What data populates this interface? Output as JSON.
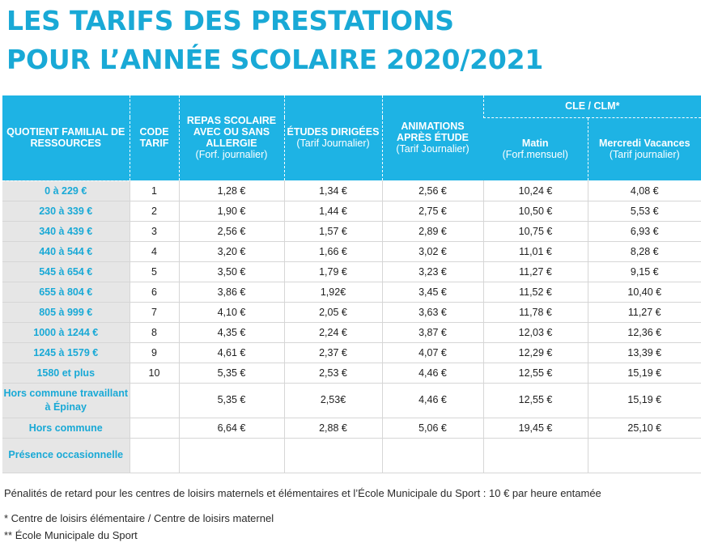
{
  "title": {
    "line1": "LES TARIFS DES PRESTATIONS",
    "line2": "POUR L’ANNÉE SCOLAIRE 2020/2021"
  },
  "headers": {
    "quotient": "QUOTIENT FAMILIAL DE RESSOURCES",
    "code_tarif": "CODE TARIF",
    "repas": "REPAS SCOLAIRE AVEC OU SANS ALLERGIE",
    "repas_sub": "(Forf. journalier)",
    "etudes": "ÉTUDES DIRIGÉES",
    "etudes_sub": "(Tarif Journalier)",
    "animations": "ANIMATIONS APRÈS ÉTUDE",
    "animations_sub": "(Tarif Journalier)",
    "cle_clm": "CLE / CLM*",
    "matin": "Matin",
    "matin_sub": "(Forf.mensuel)",
    "mercredi": "Mercredi Vacances",
    "mercredi_sub": "(Tarif journalier)"
  },
  "rows": [
    {
      "qf": "0 à 229 €",
      "code": "1",
      "repas": "1,28 €",
      "etudes": "1,34 €",
      "animations": "2,56 €",
      "matin": "10,24 €",
      "mercredi": "4,08 €"
    },
    {
      "qf": "230 à 339 €",
      "code": "2",
      "repas": "1,90 €",
      "etudes": "1,44 €",
      "animations": "2,75 €",
      "matin": "10,50 €",
      "mercredi": "5,53 €"
    },
    {
      "qf": "340 à 439 €",
      "code": "3",
      "repas": "2,56 €",
      "etudes": "1,57 €",
      "animations": "2,89 €",
      "matin": "10,75 €",
      "mercredi": "6,93 €"
    },
    {
      "qf": "440 à 544 €",
      "code": "4",
      "repas": "3,20 €",
      "etudes": "1,66 €",
      "animations": "3,02 €",
      "matin": "11,01 €",
      "mercredi": "8,28 €"
    },
    {
      "qf": "545 à 654 €",
      "code": "5",
      "repas": "3,50 €",
      "etudes": "1,79 €",
      "animations": "3,23 €",
      "matin": "11,27 €",
      "mercredi": "9,15 €"
    },
    {
      "qf": "655 à 804 €",
      "code": "6",
      "repas": "3,86 €",
      "etudes": "1,92€",
      "animations": "3,45 €",
      "matin": "11,52 €",
      "mercredi": "10,40 €"
    },
    {
      "qf": "805 à 999 €",
      "code": "7",
      "repas": "4,10 €",
      "etudes": "2,05 €",
      "animations": "3,63 €",
      "matin": "11,78 €",
      "mercredi": "11,27 €"
    },
    {
      "qf": "1000 à 1244 €",
      "code": "8",
      "repas": "4,35 €",
      "etudes": "2,24 €",
      "animations": "3,87 €",
      "matin": "12,03 €",
      "mercredi": "12,36 €"
    },
    {
      "qf": "1245 à 1579 €",
      "code": "9",
      "repas": "4,61 €",
      "etudes": "2,37 €",
      "animations": "4,07 €",
      "matin": "12,29 €",
      "mercredi": "13,39 €"
    },
    {
      "qf": "1580 et plus",
      "code": "10",
      "repas": "5,35 €",
      "etudes": "2,53 €",
      "animations": "4,46 €",
      "matin": "12,55 €",
      "mercredi": "15,19 €"
    },
    {
      "qf": "Hors commune travaillant à Épinay",
      "code": "",
      "repas": "5,35 €",
      "etudes": "2,53€",
      "animations": "4,46 €",
      "matin": "12,55 €",
      "mercredi": "15,19 €"
    },
    {
      "qf": "Hors commune",
      "code": "",
      "repas": "6,64 €",
      "etudes": "2,88 €",
      "animations": "5,06 €",
      "matin": "19,45 €",
      "mercredi": "25,10 €"
    },
    {
      "qf": "Présence occasionnelle",
      "code": "",
      "repas": "",
      "etudes": "",
      "animations": "",
      "matin": "",
      "mercredi": ""
    }
  ],
  "notes": {
    "penalites": "Pénalités de retard pour les centres de loisirs maternels et élémentaires et l’École Municipale du Sport : 10 € par heure entamée",
    "footnote1": "* Centre de loisirs élémentaire / Centre de loisirs maternel",
    "footnote2": "** École Municipale du Sport"
  },
  "colors": {
    "accent": "#1eb3e4",
    "title": "#19a9d6",
    "first_column_bg": "#e6e6e6"
  }
}
